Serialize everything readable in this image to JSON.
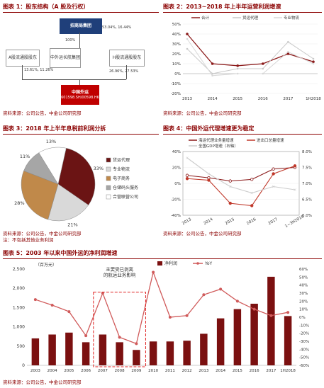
{
  "fig1": {
    "title": "图表 1：股东结构（A 股及行权）",
    "source": "资料来源：公司公告，中金公司研究部",
    "parent": "招商局集团",
    "parent_pct": "53.04%, 16.44%",
    "sinotrans_pct": "100%",
    "a_holders": "A股流通股股东",
    "sinotrans": "中外运长航集团",
    "h_holders": "H股流通股股东",
    "left_pct": "13.61%, 11.26%",
    "right_pct": "26.96%, 27.53%",
    "company": "中国外运",
    "company_code": "(601598.SH/00598.HK)"
  },
  "fig2": {
    "title": "图表 2：2013~2018 年上半年运营利润增速",
    "source": "资料来源：公司公告，中金公司研究部"
  },
  "fig3": {
    "title": "图表 3：2018 年上半年息税前利润分拆",
    "source": "资料来源：公司公告，中金公司研究部",
    "note": "注：不包括其他业务利润"
  },
  "fig4": {
    "title": "图表 4：中国外运代理增速更为稳定",
    "source": "资料来源：公司公告，中金公司研究部"
  },
  "fig5": {
    "title": "图表 5：2003 年以来中国外运的净利润增速",
    "source": "资料来源：公司公告，中金公司研究部",
    "annotation": "主要受已剥离的航运业务影响"
  },
  "chart_data": [
    {
      "type": "line",
      "title": "图表 2：2013~2018 年上半年运营利润增速",
      "x": [
        "2013",
        "2014",
        "2015",
        "2016",
        "2017",
        "1H2018"
      ],
      "ylim": [
        -20,
        50
      ],
      "yticks": [
        "-20%",
        "-10%",
        "0%",
        "10%",
        "20%",
        "30%",
        "40%",
        "50%"
      ],
      "series": [
        {
          "name": "合计",
          "values": [
            40,
            10,
            8,
            10,
            20,
            12
          ],
          "color": "#8b1a1a"
        },
        {
          "name": "货运代理",
          "values": [
            25,
            0,
            5,
            5,
            32,
            15
          ],
          "color": "#c9c9c9"
        },
        {
          "name": "专业物流",
          "values": [
            35,
            -2,
            0,
            0,
            22,
            10
          ],
          "color": "#d8d8d8"
        }
      ],
      "legend_position": "top"
    },
    {
      "type": "pie",
      "title": "图表 3：2018 年上半年息税前利润分拆",
      "categories": [
        "货运代理",
        "专业物流",
        "电子商务",
        "仓储码头服务",
        "合营联营公司"
      ],
      "values": [
        33,
        21,
        28,
        11,
        13
      ],
      "labels": [
        "33%",
        "21%",
        "28%",
        "11%",
        "13%"
      ],
      "colors": [
        "#6b1414",
        "#d9d9d9",
        "#c0894a",
        "#a6a6a6",
        "#ffffff"
      ],
      "legend_position": "right"
    },
    {
      "type": "line",
      "title": "图表 4：中国外运代理增速更为稳定",
      "x": [
        "2013",
        "2014",
        "2015",
        "2016",
        "2017",
        "1~3H2018"
      ],
      "ylim": [
        -40,
        40
      ],
      "yticks": [
        "-40%",
        "-20%",
        "0%",
        "20%",
        "40%"
      ],
      "y2lim": [
        6.0,
        8.0
      ],
      "y2ticks": [
        "6.0%",
        "6.5%",
        "7.0%",
        "7.5%",
        "8.0%"
      ],
      "series": [
        {
          "name": "海运代理业务量增速",
          "values": [
            10,
            7,
            3,
            5,
            18,
            20
          ],
          "color": "#8b1a1a",
          "axis": "left"
        },
        {
          "name": "进出口总量增速",
          "values": [
            6,
            4,
            -25,
            -28,
            12,
            22
          ],
          "color": "#c0392b",
          "axis": "left"
        },
        {
          "name": "全国GDP增速（右轴）",
          "values": [
            7.8,
            7.3,
            6.9,
            6.7,
            6.9,
            6.8
          ],
          "color": "#cccccc",
          "axis": "right"
        }
      ],
      "legend_position": "top"
    },
    {
      "type": "bar",
      "title": "图表 5：2003 年以来中国外运的净利润增速",
      "ylabel": "（百万元）",
      "categories": [
        "2003",
        "2004",
        "2005",
        "2006",
        "2007",
        "2008",
        "2009",
        "2010",
        "2011",
        "2012",
        "2013",
        "2014",
        "2015",
        "2016",
        "2017",
        "1H2018"
      ],
      "ylim": [
        0,
        2500
      ],
      "yticks": [
        "0",
        "500",
        "1,000",
        "1,500",
        "2,000",
        "2,500"
      ],
      "y2lim": [
        -60,
        60
      ],
      "y2ticks": [
        "-60%",
        "-50%",
        "-40%",
        "-30%",
        "-20%",
        "-10%",
        "0%",
        "10%",
        "20%",
        "30%",
        "40%",
        "50%",
        "60%"
      ],
      "series": [
        {
          "name": "净利润",
          "type": "bar",
          "values": [
            700,
            800,
            850,
            600,
            800,
            600,
            400,
            620,
            620,
            640,
            820,
            1220,
            1460,
            1600,
            2300,
            1280
          ],
          "color": "#7b1010"
        },
        {
          "name": "YoY",
          "type": "line",
          "axis": "right",
          "values": [
            22,
            15,
            7,
            -23,
            30,
            -25,
            -33,
            56,
            0,
            2,
            28,
            35,
            20,
            10,
            2,
            6
          ],
          "color": "#d05a5a"
        }
      ],
      "legend_position": "top"
    }
  ]
}
